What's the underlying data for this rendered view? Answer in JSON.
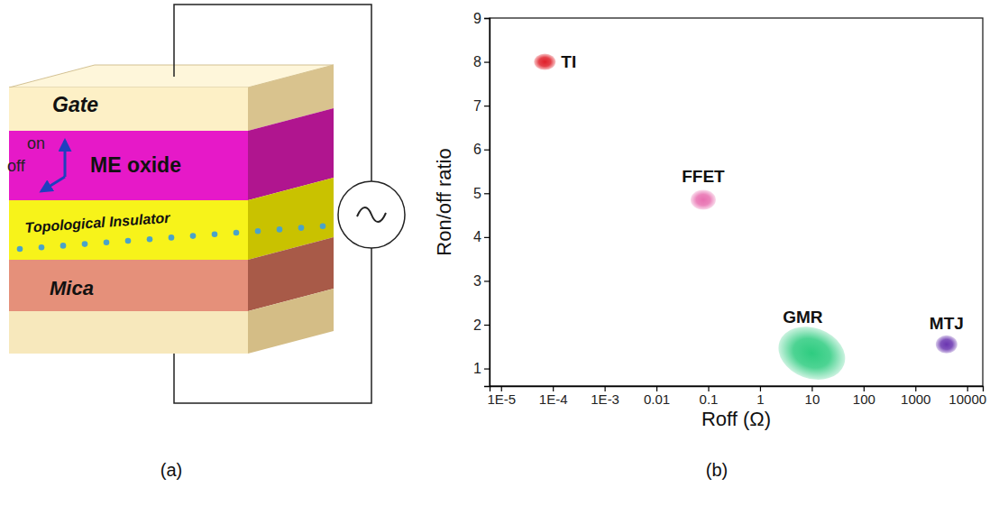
{
  "diagram": {
    "panel_label": "(a)",
    "layers": [
      "Gate",
      "ME oxide",
      "Topological Insulator",
      "Mica"
    ],
    "arrows": [
      "on",
      "off"
    ]
  },
  "chart_data": {
    "type": "scatter",
    "panel_label": "(b)",
    "x_label": "Roff (Ω)",
    "y_label": "Ron/off ratio",
    "log": "x",
    "xlim": [
      6e-06,
      20000
    ],
    "xticks": [
      {
        "value": 1e-05,
        "label": "1E-5"
      },
      {
        "value": 0.0001,
        "label": "1E-4"
      },
      {
        "value": 0.001,
        "label": "1E-3"
      },
      0.01,
      0.1,
      1,
      10,
      100,
      1000,
      10000
    ],
    "ylim": [
      0.6,
      9
    ],
    "yticks": [
      1,
      2,
      3,
      4,
      5,
      6,
      7,
      8,
      9
    ],
    "series": [
      {
        "name": "TI",
        "color": "#e0202a",
        "x": [
          7e-05
        ],
        "values": [
          8.0
        ]
      },
      {
        "name": "FFET",
        "color": "#e86fb0",
        "x": [
          0.08
        ],
        "values": [
          4.85
        ]
      },
      {
        "name": "GMR",
        "color": "#2ecc80",
        "x": [
          10
        ],
        "values": [
          1.35
        ]
      },
      {
        "name": "MTJ",
        "color": "#6a35b0",
        "x": [
          4000
        ],
        "values": [
          1.55
        ]
      }
    ]
  }
}
